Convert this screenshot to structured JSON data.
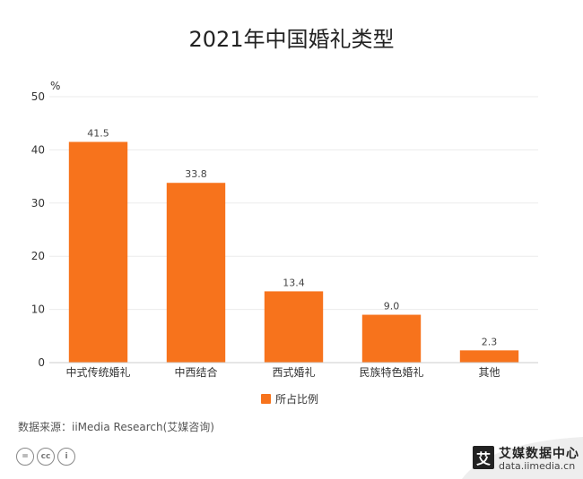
{
  "chart_data": {
    "type": "bar",
    "title": "2021年中国婚礼类型",
    "ylabel": "%",
    "xlabel": "",
    "ylim": [
      0,
      50
    ],
    "yticks": [
      0,
      10,
      20,
      30,
      40,
      50
    ],
    "categories": [
      "中式传统婚礼",
      "中西结合",
      "西式婚礼",
      "民族特色婚礼",
      "其他"
    ],
    "series": [
      {
        "name": "所占比例",
        "values": [
          41.5,
          33.8,
          13.4,
          9.0,
          2.3
        ],
        "labels": [
          "41.5",
          "33.8",
          "13.4",
          "9.0",
          "2.3"
        ]
      }
    ],
    "legend": "bottom-center",
    "grid": true
  },
  "colors": {
    "bar": "#F7731C",
    "grid": "#EBEBEB",
    "axis": "#CCCCCC"
  },
  "footer": {
    "source": "数据来源：iiMedia Research(艾媒咨询)",
    "license_icons": [
      "equal-icon",
      "cc-icon",
      "person-icon"
    ],
    "license_glyphs": [
      "=",
      "cc",
      "i"
    ],
    "brand_name": "艾媒数据中心",
    "brand_url": "data.iimedia.cn",
    "brand_logo_char": "艾"
  }
}
